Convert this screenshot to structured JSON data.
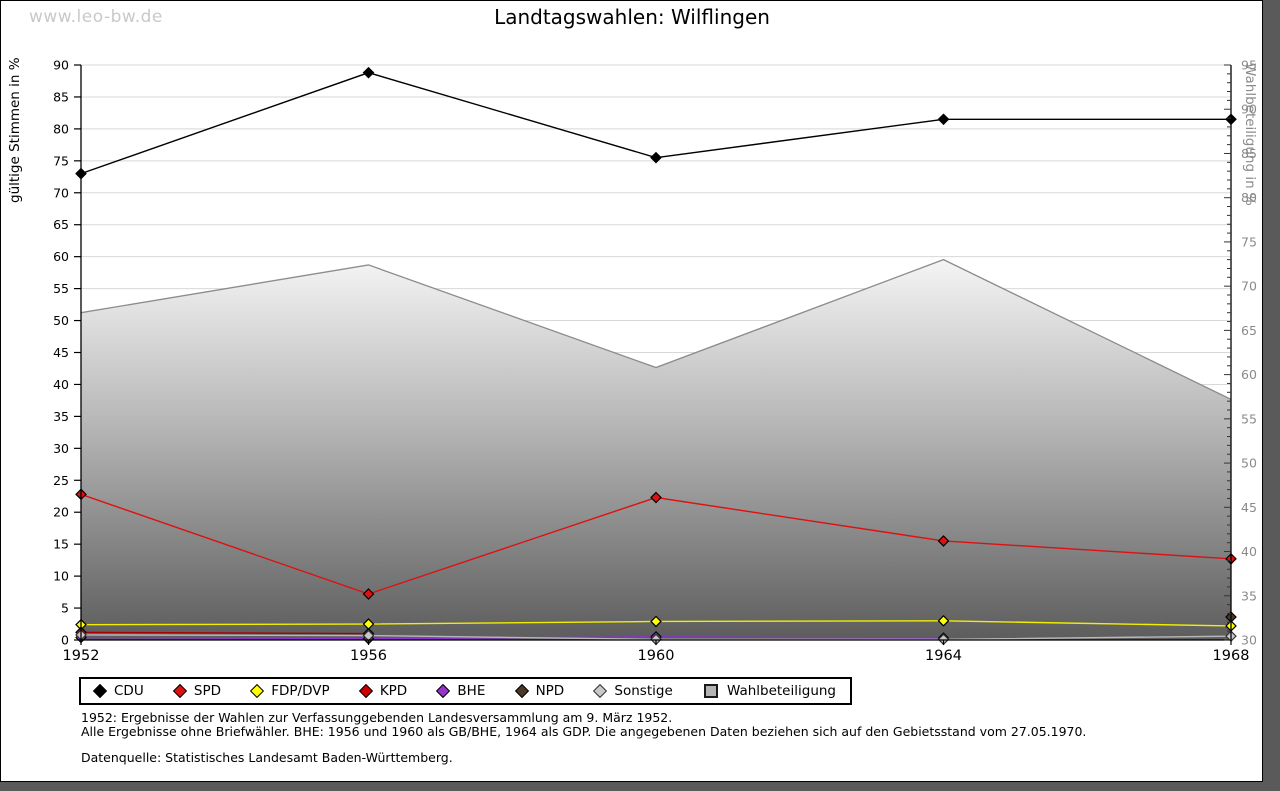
{
  "watermark": "www.leo-bw.de",
  "title": "Landtagswahlen: Wilflingen",
  "chart_data": {
    "type": "line",
    "title": "Landtagswahlen: Wilflingen",
    "x": [
      "1952",
      "1956",
      "1960",
      "1964",
      "1968"
    ],
    "left_axis": {
      "label": "gültige Stimmen in %",
      "min": 0,
      "max": 90,
      "tick_step": 5
    },
    "right_axis": {
      "label": "Wahlbeteiligung in %",
      "min": 30,
      "max": 95,
      "tick_step": 5
    },
    "grid": "horizontal",
    "legend_position": "bottom",
    "series": [
      {
        "name": "CDU",
        "axis": "left",
        "style": "line",
        "color": "#000000",
        "marker_fill": "#000000",
        "marker_stroke": "#000000",
        "values": [
          73.0,
          88.8,
          75.5,
          81.5,
          81.5
        ]
      },
      {
        "name": "SPD",
        "axis": "left",
        "style": "line",
        "color": "#dd1111",
        "marker_fill": "#dd1111",
        "marker_stroke": "#000000",
        "values": [
          22.8,
          7.2,
          22.3,
          15.5,
          12.7
        ]
      },
      {
        "name": "FDP/DVP",
        "axis": "left",
        "style": "line",
        "color": "#f2ee00",
        "marker_fill": "#ffff00",
        "marker_stroke": "#000000",
        "values": [
          2.4,
          2.5,
          2.9,
          3.0,
          2.2
        ]
      },
      {
        "name": "KPD",
        "axis": "left",
        "style": "line",
        "color": "#aa0000",
        "marker_fill": "#cc0000",
        "marker_stroke": "#000000",
        "values": [
          1.2,
          1.0,
          null,
          null,
          null
        ]
      },
      {
        "name": "BHE",
        "axis": "left",
        "style": "line",
        "color": "#8833cc",
        "marker_fill": "#9933cc",
        "marker_stroke": "#000000",
        "values": [
          0.4,
          0.2,
          0.5,
          0.3,
          null
        ]
      },
      {
        "name": "NPD",
        "axis": "left",
        "style": "line",
        "color": "#493527",
        "marker_fill": "#4d3826",
        "marker_stroke": "#000000",
        "values": [
          null,
          null,
          null,
          null,
          3.6
        ]
      },
      {
        "name": "Sonstige",
        "axis": "left",
        "style": "line",
        "color": "#b8b8b8",
        "marker_fill": "#c8c8c8",
        "marker_stroke": "#333333",
        "values": [
          0.8,
          0.7,
          0.1,
          0.1,
          0.6
        ]
      },
      {
        "name": "Wahlbeteiligung",
        "axis": "right",
        "style": "area",
        "color": "#8c8c8c",
        "marker_fill": "#b4b4b4",
        "marker_stroke": "#1a1a1a",
        "values": [
          67.0,
          72.4,
          60.8,
          73.0,
          57.2
        ]
      }
    ]
  },
  "legend": {
    "items": [
      "CDU",
      "SPD",
      "FDP/DVP",
      "KPD",
      "BHE",
      "NPD",
      "Sonstige",
      "Wahlbeteiligung"
    ]
  },
  "footnotes": {
    "line1": "1952: Ergebnisse der Wahlen zur Verfassunggebenden Landesversammlung am 9. März 1952.",
    "line2": "Alle Ergebnisse ohne Briefwähler. BHE: 1956 und 1960 als GB/BHE, 1964 als GDP. Die angegebenen Daten beziehen sich auf den Gebietsstand vom 27.05.1970.",
    "source": "Datenquelle: Statistisches Landesamt Baden-Württemberg."
  },
  "colors": {
    "frame": "#5a5a5a",
    "gridline": "#d8d8d8",
    "axis": "#000000",
    "right_axis_text": "#8a8a8a",
    "watermark": "#c9c9c9",
    "area_gradient_top": "#f7f7f7",
    "area_gradient_bottom": "#5c5c5c"
  }
}
